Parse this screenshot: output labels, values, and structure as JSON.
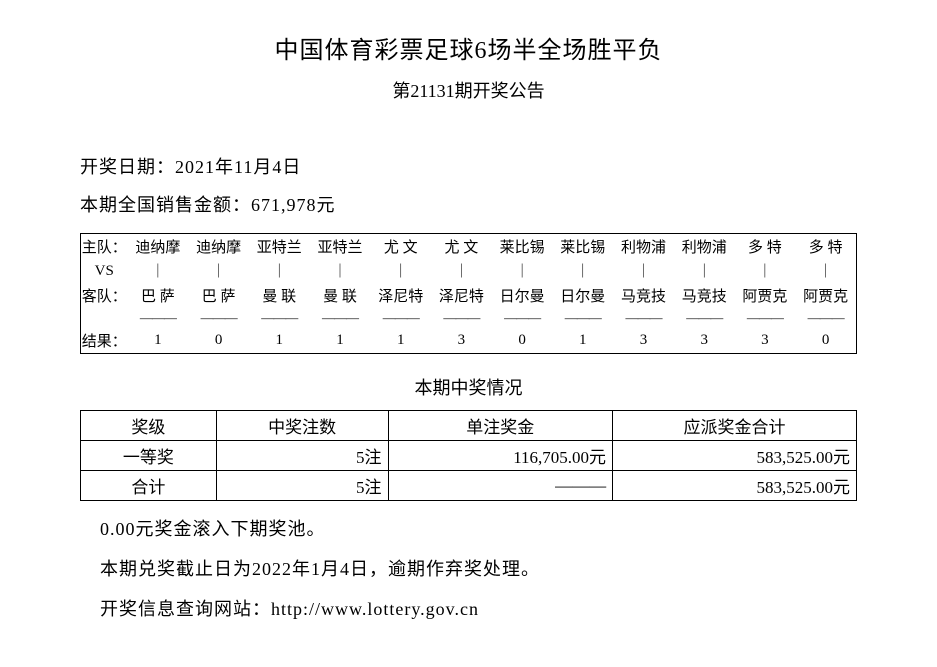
{
  "title": "中国体育彩票足球6场半全场胜平负",
  "subtitle": "第21131期开奖公告",
  "draw_date_label": "开奖日期：",
  "draw_date": "2021年11月4日",
  "sales_label": "本期全国销售金额：",
  "sales_amount": "671,978元",
  "match_labels": {
    "home": "主队：",
    "vs": "VS",
    "away": "客队：",
    "result": "结果："
  },
  "matches": {
    "home": [
      "迪纳摩",
      "迪纳摩",
      "亚特兰",
      "亚特兰",
      "尤 文",
      "尤 文",
      "莱比锡",
      "莱比锡",
      "利物浦",
      "利物浦",
      "多 特",
      "多 特"
    ],
    "away": [
      "巴 萨",
      "巴 萨",
      "曼 联",
      "曼 联",
      "泽尼特",
      "泽尼特",
      "日尔曼",
      "日尔曼",
      "马竞技",
      "马竞技",
      "阿贾克",
      "阿贾克"
    ],
    "result": [
      "1",
      "0",
      "1",
      "1",
      "1",
      "3",
      "0",
      "1",
      "3",
      "3",
      "3",
      "0"
    ],
    "vs_sep": "｜",
    "dash": "———"
  },
  "prize_section_title": "本期中奖情况",
  "prize_headers": [
    "奖级",
    "中奖注数",
    "单注奖金",
    "应派奖金合计"
  ],
  "prize_rows": [
    {
      "level": "一等奖",
      "count": "5注",
      "unit": "116,705.00元",
      "total": "583,525.00元"
    },
    {
      "level": "合计",
      "count": "5注",
      "unit": "———",
      "total": "583,525.00元"
    }
  ],
  "rollover_text": "0.00元奖金滚入下期奖池。",
  "deadline_text": "本期兑奖截止日为2022年1月4日，逾期作弃奖处理。",
  "website_label": "开奖信息查询网站：",
  "website_url": "http://www.lottery.gov.cn"
}
